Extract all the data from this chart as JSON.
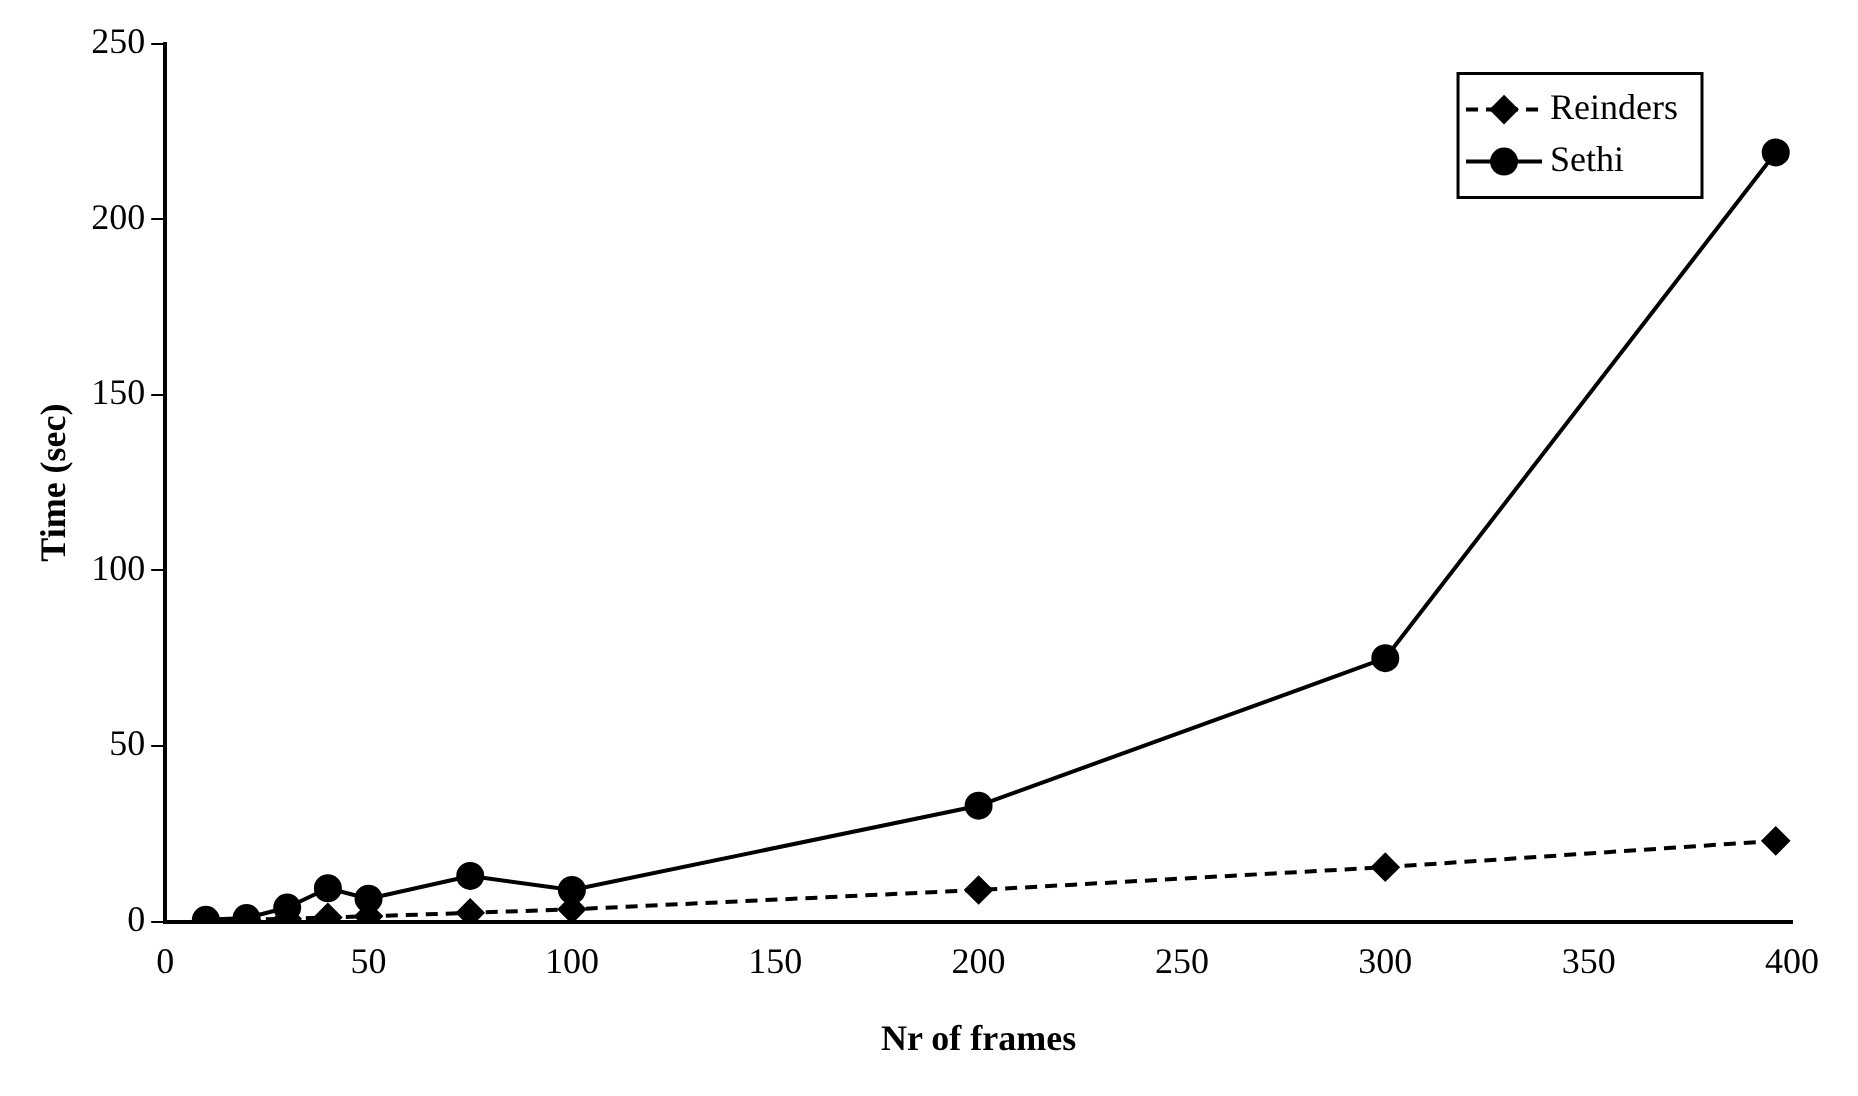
{
  "chart_data": {
    "type": "line",
    "xlabel": "Nr of frames",
    "ylabel": "Time (sec)",
    "x": [
      10,
      20,
      30,
      40,
      50,
      75,
      100,
      200,
      300,
      396
    ],
    "series": [
      {
        "name": "Reinders",
        "color": "#000000",
        "marker": "diamond",
        "line_style": "dashed",
        "values": [
          0.3,
          0.5,
          0.8,
          1.2,
          1.5,
          2.5,
          3.5,
          9,
          15.5,
          23
        ]
      },
      {
        "name": "Sethi",
        "color": "#000000",
        "marker": "circle",
        "line_style": "solid",
        "values": [
          0.5,
          1,
          4,
          9.5,
          6.5,
          13,
          9,
          33,
          75,
          219
        ]
      }
    ],
    "xlim": [
      0,
      400
    ],
    "xticks": [
      0,
      50,
      100,
      150,
      200,
      250,
      300,
      350,
      400
    ],
    "ylim": [
      0,
      250
    ],
    "yticks": [
      0,
      50,
      100,
      150,
      200,
      250
    ],
    "grid": false,
    "legend": "top right"
  }
}
